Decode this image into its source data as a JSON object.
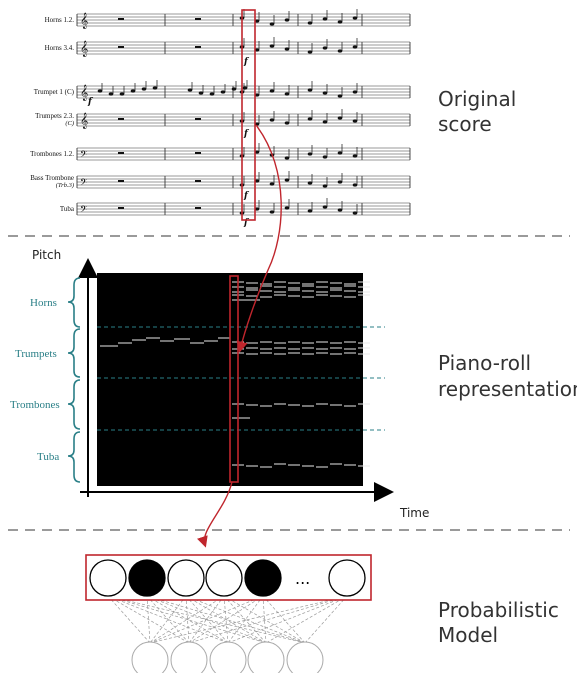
{
  "score": {
    "staves": [
      {
        "name": "Horns 1.2.",
        "sub": ""
      },
      {
        "name": "Horns 3.4.",
        "sub": ""
      },
      {
        "name": "Trumpet 1 (C)",
        "sub": ""
      },
      {
        "name": "Trumpets 2.3.",
        "sub": "(C)"
      },
      {
        "name": "Trombones 1.2.",
        "sub": ""
      },
      {
        "name": "Bass Trombone",
        "sub": "(Trb.3)"
      },
      {
        "name": "Tuba",
        "sub": ""
      }
    ],
    "dynamic": "f"
  },
  "labels": {
    "original": [
      "Original",
      "score"
    ],
    "pianoroll": [
      "Piano-roll",
      "representation"
    ],
    "model": [
      "Probabilistic",
      "Model"
    ]
  },
  "axes": {
    "y": "Pitch",
    "x": "Time"
  },
  "instruments": [
    "Horns",
    "Trumpets",
    "Trombones",
    "Tuba"
  ],
  "model": {
    "units": [
      0,
      1,
      0,
      0,
      1,
      0
    ],
    "ellipsis": "..."
  },
  "colors": {
    "accent": "#c0262d",
    "teal": "#2a7f87",
    "divider": "#9a9a9a"
  }
}
